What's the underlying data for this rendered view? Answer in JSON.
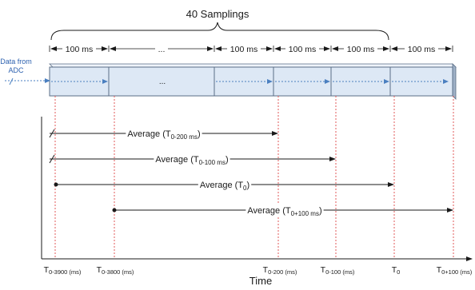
{
  "title": "40 Samplings",
  "source_label": [
    "Data from",
    "ADC"
  ],
  "intervals": [
    "100 ms",
    "...",
    "100 ms",
    "100 ms",
    "100 ms",
    "100 ms"
  ],
  "buffer_ellipsis": "...",
  "averages": [
    {
      "prefix": "Average (T",
      "sub": "0-200 ms",
      "suffix": ")"
    },
    {
      "prefix": "Average (T",
      "sub": "0-100 ms",
      "suffix": ")"
    },
    {
      "prefix": "Average (T",
      "sub": "0",
      "suffix": ")"
    },
    {
      "prefix": "Average (T",
      "sub": "0+100 ms",
      "suffix": ")"
    }
  ],
  "time_ticks": [
    {
      "main": "T",
      "sub": "0-3900 (ms)"
    },
    {
      "main": "T",
      "sub": "0-3800 (ms)"
    },
    {
      "main": "T",
      "sub": "0-200 (ms)"
    },
    {
      "main": "T",
      "sub": "0-100 (ms)"
    },
    {
      "main": "T",
      "sub": "0"
    },
    {
      "main": "T",
      "sub": "0+100 (ms)"
    }
  ],
  "x_axis_label": "Time",
  "colors": {
    "buffer_fill": "#dde8f5",
    "buffer_stroke": "#5a6e86",
    "flow_arrow": "#4a7fc0",
    "marker_line": "#e05a5a",
    "text": "#1a1a1a",
    "source_text": "#2e62b0"
  }
}
